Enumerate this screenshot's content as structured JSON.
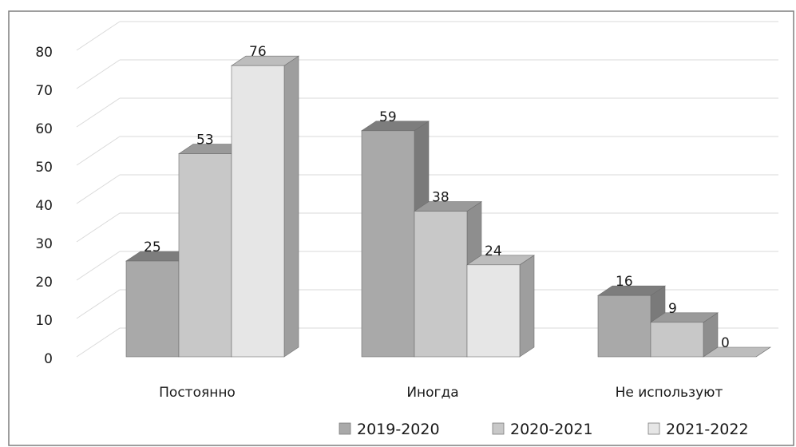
{
  "chart_data": {
    "type": "bar",
    "title": "",
    "xlabel": "",
    "ylabel": "",
    "categories": [
      "Постоянно",
      "Иногда",
      "Не используют"
    ],
    "series": [
      {
        "name": "2019-2020",
        "values": [
          25,
          59,
          16
        ]
      },
      {
        "name": "2020-2021",
        "values": [
          53,
          38,
          9
        ]
      },
      {
        "name": "2021-2022",
        "values": [
          76,
          24,
          0
        ]
      }
    ],
    "ylim": [
      0,
      80
    ],
    "yticks": [
      0,
      10,
      20,
      30,
      40,
      50,
      60,
      70,
      80
    ],
    "grid": true,
    "legend": "bottom-right",
    "colors": {
      "series": [
        {
          "front": "#a9a9a9",
          "top": "#7d7d7d",
          "side": "#7a7a7a"
        },
        {
          "front": "#c8c8c8",
          "top": "#9a9a9a",
          "side": "#8e8e8e"
        },
        {
          "front": "#e6e6e6",
          "top": "#bdbdbd",
          "side": "#9e9e9e"
        }
      ],
      "grid": "#d9d9d9",
      "border": "#7f7f7f"
    }
  }
}
